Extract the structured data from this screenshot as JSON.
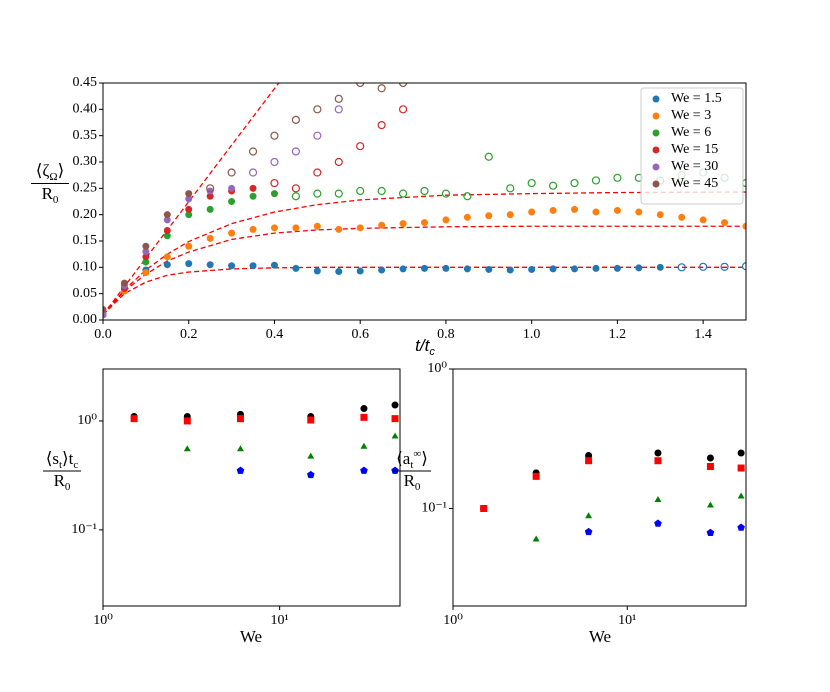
{
  "chart_data": [
    {
      "type": "scatter",
      "xlabel": [
        {
          "text": "t/t"
        },
        {
          "sub": "c"
        }
      ],
      "ylabel": {
        "numerator": [
          {
            "text": "⟨ζ"
          },
          {
            "sub": "Ω"
          },
          {
            "text": "⟩"
          }
        ],
        "denominator": [
          {
            "text": "R"
          },
          {
            "sub": "0"
          }
        ]
      },
      "xlim": [
        0,
        1.5
      ],
      "ylim": [
        0,
        0.45
      ],
      "xticks": [
        {
          "value": 0,
          "label": "0.0"
        },
        {
          "value": 0.2,
          "label": "0.2"
        },
        {
          "value": 0.4,
          "label": "0.4"
        },
        {
          "value": 0.6,
          "label": "0.6"
        },
        {
          "value": 0.8,
          "label": "0.8"
        },
        {
          "value": 1.0,
          "label": "1.0"
        },
        {
          "value": 1.2,
          "label": "1.2"
        },
        {
          "value": 1.4,
          "label": "1.4"
        }
      ],
      "yticks": [
        {
          "value": 0,
          "label": "0.00"
        },
        {
          "value": 0.05,
          "label": "0.05"
        },
        {
          "value": 0.1,
          "label": "0.10"
        },
        {
          "value": 0.15,
          "label": "0.15"
        },
        {
          "value": 0.2,
          "label": "0.20"
        },
        {
          "value": 0.25,
          "label": "0.25"
        },
        {
          "value": 0.3,
          "label": "0.30"
        },
        {
          "value": 0.35,
          "label": "0.35"
        },
        {
          "value": 0.4,
          "label": "0.40"
        },
        {
          "value": 0.45,
          "label": "0.45"
        }
      ],
      "legend": "upper right",
      "series": [
        {
          "name": "We = 1.5",
          "color": "#1f77b4",
          "x": [
            0,
            0.05,
            0.1,
            0.15,
            0.2,
            0.25,
            0.3,
            0.35,
            0.4,
            0.45,
            0.5,
            0.55,
            0.6,
            0.65,
            0.7,
            0.75,
            0.8,
            0.85,
            0.9,
            0.95,
            1.0,
            1.05,
            1.1,
            1.15,
            1.2,
            1.25,
            1.3
          ],
          "values": [
            0.01,
            0.06,
            0.095,
            0.105,
            0.107,
            0.105,
            0.103,
            0.103,
            0.104,
            0.098,
            0.093,
            0.092,
            0.093,
            0.095,
            0.097,
            0.098,
            0.098,
            0.097,
            0.096,
            0.095,
            0.096,
            0.097,
            0.097,
            0.098,
            0.098,
            0.099,
            0.1
          ],
          "x_open": [
            1.35,
            1.4,
            1.45,
            1.5
          ],
          "values_open": [
            0.1,
            0.101,
            0.101,
            0.102
          ]
        },
        {
          "name": "We = 3",
          "color": "#ff7f0e",
          "x": [
            0,
            0.05,
            0.1,
            0.15,
            0.2,
            0.25,
            0.3,
            0.35,
            0.4,
            0.45,
            0.5,
            0.55,
            0.6,
            0.65,
            0.7,
            0.75,
            0.8,
            0.85,
            0.9,
            0.95,
            1.0,
            1.05,
            1.1,
            1.15,
            1.2,
            1.25,
            1.3,
            1.35,
            1.4,
            1.45,
            1.5
          ],
          "values": [
            0.01,
            0.055,
            0.09,
            0.12,
            0.14,
            0.155,
            0.165,
            0.172,
            0.175,
            0.175,
            0.178,
            0.172,
            0.175,
            0.18,
            0.183,
            0.185,
            0.19,
            0.195,
            0.198,
            0.2,
            0.205,
            0.208,
            0.21,
            0.205,
            0.208,
            0.205,
            0.2,
            0.195,
            0.19,
            0.185,
            0.178
          ],
          "x_open": [],
          "values_open": []
        },
        {
          "name": "We = 6",
          "color": "#2ca02c",
          "x": [
            0,
            0.05,
            0.1,
            0.15,
            0.2,
            0.25,
            0.3,
            0.35,
            0.4
          ],
          "values": [
            0.01,
            0.06,
            0.11,
            0.16,
            0.2,
            0.21,
            0.225,
            0.235,
            0.24
          ],
          "x_open": [
            0.45,
            0.5,
            0.55,
            0.6,
            0.65,
            0.7,
            0.75,
            0.8,
            0.85,
            0.9,
            0.95,
            1.0,
            1.05,
            1.1,
            1.15,
            1.2,
            1.25,
            1.3,
            1.35,
            1.4,
            1.45,
            1.5
          ],
          "values_open": [
            0.235,
            0.24,
            0.24,
            0.245,
            0.245,
            0.24,
            0.245,
            0.24,
            0.235,
            0.31,
            0.25,
            0.26,
            0.255,
            0.26,
            0.265,
            0.27,
            0.27,
            0.265,
            0.275,
            0.28,
            0.27,
            0.26
          ]
        },
        {
          "name": "We = 15",
          "color": "#d62728",
          "x": [
            0,
            0.05,
            0.1,
            0.15,
            0.2,
            0.25,
            0.3,
            0.35
          ],
          "values": [
            0.01,
            0.06,
            0.12,
            0.17,
            0.21,
            0.235,
            0.245,
            0.25
          ],
          "x_open": [
            0.4,
            0.45,
            0.5,
            0.55,
            0.6,
            0.65,
            0.7
          ],
          "values_open": [
            0.26,
            0.25,
            0.28,
            0.3,
            0.33,
            0.37,
            0.4
          ]
        },
        {
          "name": "We = 30",
          "color": "#9467bd",
          "x": [
            0,
            0.05,
            0.1,
            0.15,
            0.2,
            0.25,
            0.3
          ],
          "values": [
            0.01,
            0.065,
            0.13,
            0.19,
            0.23,
            0.245,
            0.25
          ],
          "x_open": [
            0.35,
            0.4,
            0.45,
            0.5,
            0.55
          ],
          "values_open": [
            0.28,
            0.3,
            0.32,
            0.35,
            0.4
          ]
        },
        {
          "name": "We = 45",
          "color": "#8c564b",
          "x": [
            0,
            0.05,
            0.1,
            0.15,
            0.2
          ],
          "values": [
            0.02,
            0.07,
            0.14,
            0.2,
            0.24
          ],
          "x_open": [
            0.25,
            0.3,
            0.35,
            0.4,
            0.45,
            0.5,
            0.55,
            0.6,
            0.65,
            0.7
          ],
          "values_open": [
            0.25,
            0.28,
            0.32,
            0.35,
            0.38,
            0.4,
            0.42,
            0.45,
            0.44,
            0.45
          ]
        }
      ],
      "fits": [
        {
          "color": "#ff0000",
          "linestyle": "dashed",
          "x": [
            0,
            0.05,
            0.1,
            0.15,
            0.2,
            0.3,
            0.4,
            0.5,
            0.6,
            0.8,
            1.0,
            1.2,
            1.5
          ],
          "values": [
            0.01,
            0.05,
            0.072,
            0.085,
            0.091,
            0.097,
            0.099,
            0.1,
            0.1,
            0.1,
            0.1,
            0.1,
            0.1
          ]
        },
        {
          "color": "#ff0000",
          "linestyle": "dashed",
          "x": [
            0,
            0.05,
            0.1,
            0.15,
            0.2,
            0.3,
            0.4,
            0.5,
            0.6,
            0.8,
            1.0,
            1.2,
            1.5
          ],
          "values": [
            0.01,
            0.055,
            0.087,
            0.112,
            0.129,
            0.153,
            0.165,
            0.171,
            0.174,
            0.177,
            0.178,
            0.178,
            0.178
          ]
        },
        {
          "color": "#ff0000",
          "linestyle": "dashed",
          "x": [
            0,
            0.05,
            0.1,
            0.15,
            0.2,
            0.3,
            0.4,
            0.5,
            0.6,
            0.8,
            1.0,
            1.2,
            1.5
          ],
          "values": [
            0.01,
            0.057,
            0.095,
            0.125,
            0.149,
            0.183,
            0.205,
            0.219,
            0.228,
            0.237,
            0.24,
            0.242,
            0.243
          ]
        },
        {
          "color": "#ff0000",
          "linestyle": "dashed",
          "x": [
            0,
            0.41
          ],
          "values": [
            0.01,
            0.45
          ]
        }
      ]
    },
    {
      "type": "scatter",
      "xscale": "log",
      "yscale": "log",
      "xlabel": [
        {
          "text": "We"
        }
      ],
      "ylabel": {
        "numerator": [
          {
            "text": "⟨s"
          },
          {
            "sub": "t"
          },
          {
            "text": "⟩t"
          },
          {
            "sub": "c"
          }
        ],
        "denominator": [
          {
            "text": "R"
          },
          {
            "sub": "0"
          }
        ]
      },
      "xlim": [
        1,
        48
      ],
      "ylim": [
        0.02,
        3
      ],
      "xticks": [
        {
          "value": 1,
          "label": "10⁰"
        },
        {
          "value": 10,
          "label": "10¹"
        }
      ],
      "yticks": [
        {
          "value": 0.1,
          "label": "10⁻¹"
        },
        {
          "value": 1,
          "label": "10⁰"
        }
      ],
      "x": [
        1.5,
        3,
        6,
        15,
        30,
        45
      ],
      "series": [
        {
          "color": "#000000",
          "marker": "circle",
          "values": [
            1.1,
            1.1,
            1.15,
            1.1,
            1.3,
            1.4
          ]
        },
        {
          "color": "#ff0000",
          "marker": "square",
          "values": [
            1.05,
            1.0,
            1.05,
            1.02,
            1.08,
            1.05
          ]
        },
        {
          "color": "#008000",
          "marker": "triangle",
          "values": [
            null,
            0.55,
            0.55,
            0.47,
            0.58,
            0.72
          ]
        },
        {
          "color": "#0000ff",
          "marker": "pentagon",
          "values": [
            null,
            null,
            0.35,
            0.32,
            0.35,
            0.35
          ]
        }
      ]
    },
    {
      "type": "scatter",
      "xscale": "log",
      "yscale": "log",
      "xlabel": [
        {
          "text": "We"
        }
      ],
      "ylabel": {
        "numerator": [
          {
            "text": "⟨a"
          },
          {
            "sub": "t"
          },
          {
            "sup": "∞"
          },
          {
            "text": "⟩"
          }
        ],
        "denominator": [
          {
            "text": "R"
          },
          {
            "sub": "0"
          }
        ]
      },
      "xlim": [
        1,
        48
      ],
      "ylim": [
        0.02,
        1
      ],
      "xticks": [
        {
          "value": 1,
          "label": "10⁰"
        },
        {
          "value": 10,
          "label": "10¹"
        }
      ],
      "yticks": [
        {
          "value": 0.1,
          "label": "10⁻¹"
        },
        {
          "value": 1,
          "label": "10⁰"
        }
      ],
      "x": [
        1.5,
        3,
        6,
        15,
        30,
        45
      ],
      "series": [
        {
          "color": "#000000",
          "marker": "circle",
          "values": [
            0.1,
            0.18,
            0.24,
            0.25,
            0.23,
            0.25
          ]
        },
        {
          "color": "#ff0000",
          "marker": "square",
          "values": [
            0.1,
            0.17,
            0.22,
            0.22,
            0.2,
            0.195
          ]
        },
        {
          "color": "#008000",
          "marker": "triangle",
          "values": [
            null,
            0.06,
            0.088,
            0.115,
            0.105,
            0.122
          ]
        },
        {
          "color": "#0000ff",
          "marker": "pentagon",
          "values": [
            null,
            null,
            0.068,
            0.078,
            0.067,
            0.073
          ]
        }
      ]
    }
  ]
}
